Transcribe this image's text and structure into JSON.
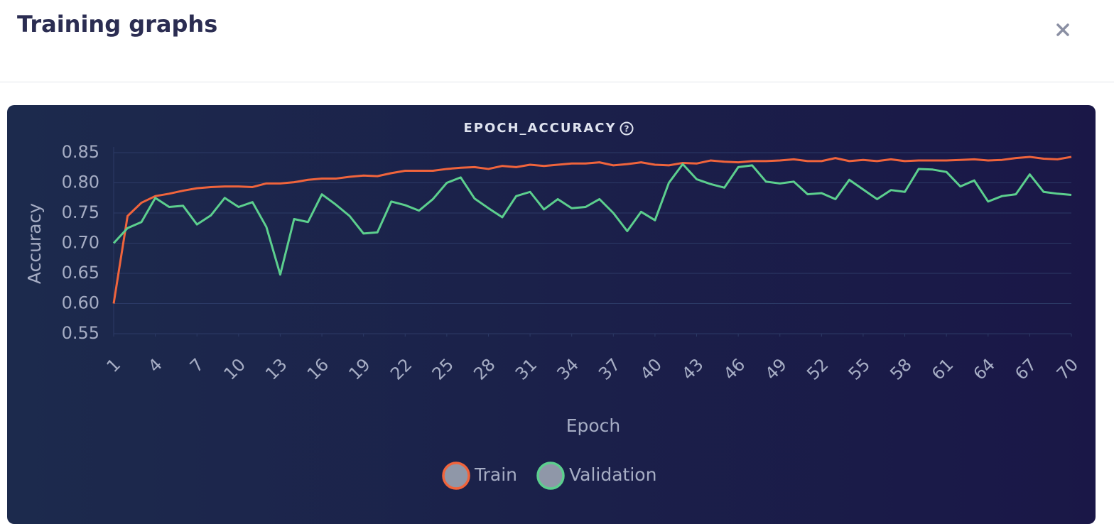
{
  "header": {
    "title": "Training graphs"
  },
  "chart_data": {
    "type": "line",
    "title": "EPOCH_ACCURACY",
    "x_label": "Epoch",
    "y_label": "Accuracy",
    "x": [
      1,
      2,
      3,
      4,
      5,
      6,
      7,
      8,
      9,
      10,
      11,
      12,
      13,
      14,
      15,
      16,
      17,
      18,
      19,
      20,
      21,
      22,
      23,
      24,
      25,
      26,
      27,
      28,
      29,
      30,
      31,
      32,
      33,
      34,
      35,
      36,
      37,
      38,
      39,
      40,
      41,
      42,
      43,
      44,
      45,
      46,
      47,
      48,
      49,
      50,
      51,
      52,
      53,
      54,
      55,
      56,
      57,
      58,
      59,
      60,
      61,
      62,
      63,
      64,
      65,
      66,
      67,
      68,
      69,
      70
    ],
    "xlim": [
      1,
      70
    ],
    "xticks": [
      1,
      4,
      7,
      10,
      13,
      16,
      19,
      22,
      25,
      28,
      31,
      34,
      37,
      40,
      43,
      46,
      49,
      52,
      55,
      58,
      61,
      64,
      67,
      70
    ],
    "ylim": [
      0.55,
      0.85
    ],
    "yticks": [
      0.55,
      {
        "value": 0.6,
        "label": "0.60"
      },
      0.65,
      {
        "value": 0.7,
        "label": "0.70"
      },
      0.75,
      {
        "value": 0.8,
        "label": "0.80"
      },
      0.85
    ],
    "grid": true,
    "series": [
      {
        "name": "Train",
        "color": "#f0643c",
        "values": [
          0.6,
          0.745,
          0.767,
          0.778,
          0.782,
          0.787,
          0.791,
          0.793,
          0.794,
          0.794,
          0.793,
          0.799,
          0.799,
          0.801,
          0.805,
          0.807,
          0.807,
          0.81,
          0.812,
          0.811,
          0.816,
          0.82,
          0.82,
          0.82,
          0.823,
          0.825,
          0.826,
          0.823,
          0.828,
          0.826,
          0.83,
          0.828,
          0.83,
          0.832,
          0.832,
          0.834,
          0.829,
          0.831,
          0.834,
          0.83,
          0.829,
          0.833,
          0.832,
          0.837,
          0.835,
          0.834,
          0.836,
          0.836,
          0.837,
          0.839,
          0.836,
          0.836,
          0.841,
          0.836,
          0.838,
          0.836,
          0.839,
          0.836,
          0.837,
          0.837,
          0.837,
          0.838,
          0.839,
          0.837,
          0.838,
          0.841,
          0.843,
          0.84,
          0.839,
          0.843
        ]
      },
      {
        "name": "Validation",
        "color": "#5ccf8e",
        "values": [
          0.7,
          0.725,
          0.735,
          0.775,
          0.76,
          0.762,
          0.731,
          0.746,
          0.775,
          0.76,
          0.768,
          0.727,
          0.648,
          0.74,
          0.735,
          0.781,
          0.764,
          0.745,
          0.716,
          0.718,
          0.769,
          0.763,
          0.754,
          0.773,
          0.8,
          0.809,
          0.774,
          0.758,
          0.743,
          0.778,
          0.785,
          0.756,
          0.773,
          0.758,
          0.76,
          0.773,
          0.75,
          0.72,
          0.752,
          0.738,
          0.8,
          0.831,
          0.806,
          0.798,
          0.792,
          0.826,
          0.829,
          0.802,
          0.799,
          0.802,
          0.781,
          0.783,
          0.773,
          0.805,
          0.789,
          0.773,
          0.788,
          0.785,
          0.823,
          0.822,
          0.818,
          0.794,
          0.804,
          0.769,
          0.778,
          0.781,
          0.814,
          0.785,
          0.782,
          0.78
        ]
      }
    ]
  }
}
